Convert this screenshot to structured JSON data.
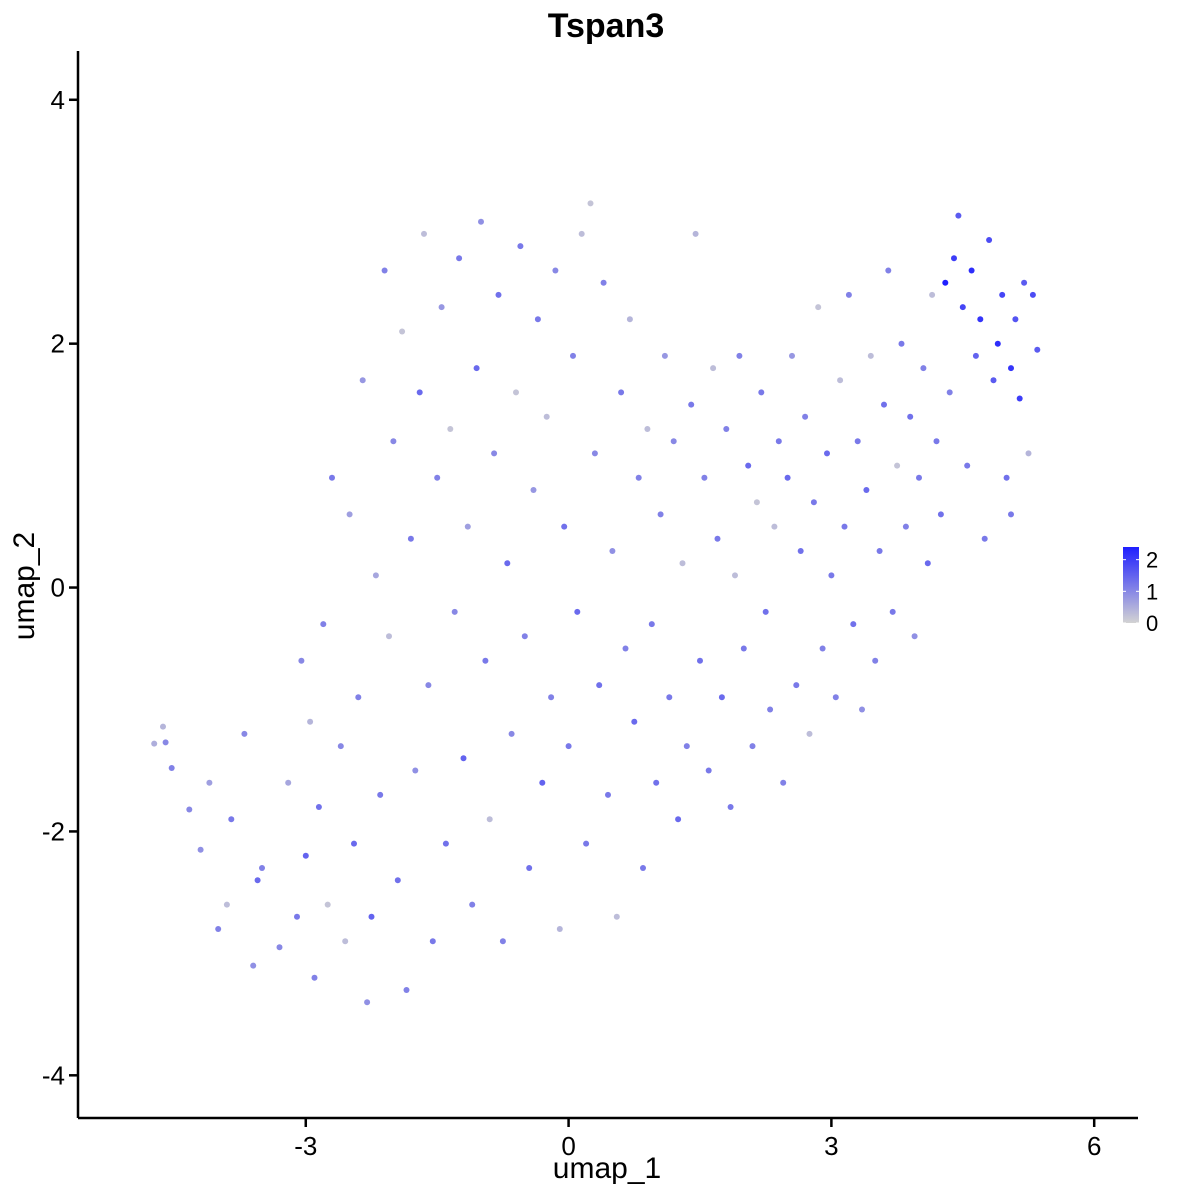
{
  "chart_data": {
    "type": "scatter",
    "title": "Tspan3",
    "xlabel": "umap_1",
    "ylabel": "umap_2",
    "xlim": [
      -5.6,
      6.5
    ],
    "ylim": [
      -4.35,
      4.4
    ],
    "x_ticks": [
      -3,
      0,
      3,
      6
    ],
    "y_ticks": [
      -4,
      -2,
      0,
      2,
      4
    ],
    "x_tick_labels": [
      "-3",
      "0",
      "3",
      "6"
    ],
    "y_tick_labels": [
      "-4",
      "-2",
      "0",
      "2",
      "4"
    ],
    "grid": false,
    "legend": {
      "placement": "right",
      "type": "colorbar",
      "range": [
        0,
        2.4
      ],
      "ticks": [
        0,
        1,
        2
      ],
      "tick_labels": [
        "0",
        "1",
        "2"
      ],
      "colors": {
        "low": "#d3d3d3",
        "high": "#1f1fff"
      }
    },
    "series": [
      {
        "color_scale": "expression",
        "points": [
          [
            -4.73,
            -1.28,
            0.5
          ],
          [
            -4.63,
            -1.14,
            0.4
          ],
          [
            -4.6,
            -1.27,
            1
          ],
          [
            -4.53,
            -1.48,
            1.1
          ],
          [
            -4.33,
            -1.82,
            1
          ],
          [
            -4.2,
            -2.15,
            0.9
          ],
          [
            -4.1,
            -1.6,
            0.7
          ],
          [
            -4,
            -2.8,
            1.1
          ],
          [
            -3.9,
            -2.6,
            0.3
          ],
          [
            -3.85,
            -1.9,
            1.2
          ],
          [
            -3.7,
            -1.2,
            1
          ],
          [
            -3.6,
            -3.1,
            0.9
          ],
          [
            -3.55,
            -2.4,
            1.4
          ],
          [
            -3.5,
            -2.3,
            1.1
          ],
          [
            -3.3,
            -2.95,
            1
          ],
          [
            -3.2,
            -1.6,
            0.6
          ],
          [
            -3.1,
            -2.7,
            1.2
          ],
          [
            -3.05,
            -0.6,
            1
          ],
          [
            -3,
            -2.2,
            1.5
          ],
          [
            -2.95,
            -1.1,
            0.4
          ],
          [
            -2.9,
            -3.2,
            1.1
          ],
          [
            -2.85,
            -1.8,
            1.3
          ],
          [
            -2.8,
            -0.3,
            1.1
          ],
          [
            -2.75,
            -2.6,
            0.2
          ],
          [
            -2.7,
            0.9,
            1.2
          ],
          [
            -2.6,
            -1.3,
            1
          ],
          [
            -2.55,
            -2.9,
            0.3
          ],
          [
            -2.5,
            0.6,
            0.7
          ],
          [
            -2.45,
            -2.1,
            1.4
          ],
          [
            -2.4,
            -0.9,
            1.1
          ],
          [
            -2.35,
            1.7,
            0.8
          ],
          [
            -2.3,
            -3.4,
            0.9
          ],
          [
            -2.25,
            -2.7,
            1.5
          ],
          [
            -2.2,
            0.1,
            0.6
          ],
          [
            -2.15,
            -1.7,
            1.2
          ],
          [
            -2.1,
            2.6,
            1.1
          ],
          [
            -2.05,
            -0.4,
            0.3
          ],
          [
            -2,
            1.2,
            1
          ],
          [
            -1.95,
            -2.4,
            1.3
          ],
          [
            -1.9,
            2.1,
            0.2
          ],
          [
            -1.85,
            -3.3,
            1.1
          ],
          [
            -1.8,
            0.4,
            1.2
          ],
          [
            -1.75,
            -1.5,
            0.9
          ],
          [
            -1.7,
            1.6,
            1.4
          ],
          [
            -1.65,
            2.9,
            0.3
          ],
          [
            -1.6,
            -0.8,
            1
          ],
          [
            -1.55,
            -2.9,
            1.2
          ],
          [
            -1.5,
            0.9,
            1.1
          ],
          [
            -1.45,
            2.3,
            0.8
          ],
          [
            -1.4,
            -2.1,
            1.3
          ],
          [
            -1.35,
            1.3,
            0.2
          ],
          [
            -1.3,
            -0.2,
            1
          ],
          [
            -1.25,
            2.7,
            1.2
          ],
          [
            -1.2,
            -1.4,
            1.5
          ],
          [
            -1.15,
            0.5,
            0.7
          ],
          [
            -1.1,
            -2.6,
            1.1
          ],
          [
            -1.05,
            1.8,
            1.4
          ],
          [
            -1,
            3.0,
            0.9
          ],
          [
            -0.95,
            -0.6,
            1.2
          ],
          [
            -0.9,
            -1.9,
            0.3
          ],
          [
            -0.85,
            1.1,
            1
          ],
          [
            -0.8,
            2.4,
            1.3
          ],
          [
            -0.75,
            -2.9,
            1.1
          ],
          [
            -0.7,
            0.2,
            1.4
          ],
          [
            -0.65,
            -1.2,
            1
          ],
          [
            -0.6,
            1.6,
            0.2
          ],
          [
            -0.55,
            2.8,
            1.2
          ],
          [
            -0.5,
            -0.4,
            1.1
          ],
          [
            -0.45,
            -2.3,
            1.3
          ],
          [
            -0.4,
            0.8,
            0.8
          ],
          [
            -0.35,
            2.2,
            1.2
          ],
          [
            -0.3,
            -1.6,
            1.5
          ],
          [
            -0.25,
            1.4,
            0.3
          ],
          [
            -0.2,
            -0.9,
            1.1
          ],
          [
            -0.15,
            2.6,
            1
          ],
          [
            -0.1,
            -2.8,
            0.4
          ],
          [
            -0.05,
            0.5,
            1.3
          ],
          [
            0,
            -1.3,
            1.2
          ],
          [
            0.05,
            1.9,
            1.1
          ],
          [
            0.1,
            -0.2,
            1.4
          ],
          [
            0.15,
            2.9,
            0.3
          ],
          [
            0.2,
            -2.1,
            1.2
          ],
          [
            0.25,
            3.15,
            0.2
          ],
          [
            0.3,
            1.1,
            1
          ],
          [
            0.35,
            -0.8,
            1.3
          ],
          [
            0.4,
            2.5,
            1.1
          ],
          [
            0.45,
            -1.7,
            1.2
          ],
          [
            0.5,
            0.3,
            0.9
          ],
          [
            0.55,
            -2.7,
            0.3
          ],
          [
            0.6,
            1.6,
            1.2
          ],
          [
            0.65,
            -0.5,
            1.1
          ],
          [
            0.7,
            2.2,
            0.4
          ],
          [
            0.75,
            -1.1,
            1.4
          ],
          [
            0.8,
            0.9,
            1.1
          ],
          [
            0.85,
            -2.3,
            1.2
          ],
          [
            0.9,
            1.3,
            0.3
          ],
          [
            0.95,
            -0.3,
            1.2
          ],
          [
            1,
            -1.6,
            1.3
          ],
          [
            1.05,
            0.6,
            1.1
          ],
          [
            1.1,
            1.9,
            0.8
          ],
          [
            1.15,
            -0.9,
            1.2
          ],
          [
            1.2,
            1.2,
            1
          ],
          [
            1.25,
            -1.9,
            1.4
          ],
          [
            1.3,
            0.2,
            0.3
          ],
          [
            1.35,
            -1.3,
            1.1
          ],
          [
            1.4,
            1.5,
            1.2
          ],
          [
            1.45,
            2.9,
            0.4
          ],
          [
            1.5,
            -0.6,
            1.3
          ],
          [
            1.55,
            0.9,
            1.1
          ],
          [
            1.6,
            -1.5,
            1.2
          ],
          [
            1.65,
            1.8,
            0.3
          ],
          [
            1.7,
            0.4,
            1.2
          ],
          [
            1.75,
            -0.9,
            1.4
          ],
          [
            1.8,
            1.3,
            1.1
          ],
          [
            1.85,
            -1.8,
            1.2
          ],
          [
            1.9,
            0.1,
            0.3
          ],
          [
            1.95,
            1.9,
            1.1
          ],
          [
            2,
            -0.5,
            1.2
          ],
          [
            2.05,
            1.0,
            1.4
          ],
          [
            2.1,
            -1.3,
            1.1
          ],
          [
            2.15,
            0.7,
            0.2
          ],
          [
            2.2,
            1.6,
            1.2
          ],
          [
            2.25,
            -0.2,
            1.3
          ],
          [
            2.3,
            -1.0,
            1.1
          ],
          [
            2.35,
            0.5,
            0.3
          ],
          [
            2.4,
            1.2,
            1.2
          ],
          [
            2.45,
            -1.6,
            1.1
          ],
          [
            2.5,
            0.9,
            1.4
          ],
          [
            2.55,
            1.9,
            0.8
          ],
          [
            2.6,
            -0.8,
            1.2
          ],
          [
            2.65,
            0.3,
            1.3
          ],
          [
            2.7,
            1.4,
            1.1
          ],
          [
            2.75,
            -1.2,
            0.3
          ],
          [
            2.8,
            0.7,
            1.2
          ],
          [
            2.85,
            2.3,
            0.2
          ],
          [
            2.9,
            -0.5,
            1.1
          ],
          [
            2.95,
            1.1,
            1.4
          ],
          [
            3,
            0.1,
            1.2
          ],
          [
            3.05,
            -0.9,
            1.1
          ],
          [
            3.1,
            1.7,
            0.3
          ],
          [
            3.15,
            0.5,
            1.2
          ],
          [
            3.2,
            2.4,
            1.1
          ],
          [
            3.25,
            -0.3,
            1.3
          ],
          [
            3.3,
            1.2,
            1.2
          ],
          [
            3.35,
            -1.0,
            0.9
          ],
          [
            3.4,
            0.8,
            1.4
          ],
          [
            3.45,
            1.9,
            0.3
          ],
          [
            3.5,
            -0.6,
            1.1
          ],
          [
            3.55,
            0.3,
            1.2
          ],
          [
            3.6,
            1.5,
            1.3
          ],
          [
            3.65,
            2.6,
            1.1
          ],
          [
            3.7,
            -0.2,
            1.2
          ],
          [
            3.75,
            1.0,
            0.2
          ],
          [
            3.8,
            2.0,
            1.2
          ],
          [
            3.85,
            0.5,
            1.1
          ],
          [
            3.9,
            1.4,
            1.3
          ],
          [
            3.95,
            -0.4,
            0.9
          ],
          [
            4,
            0.9,
            1.2
          ],
          [
            4.05,
            1.8,
            1.1
          ],
          [
            4.1,
            0.2,
            1.4
          ],
          [
            4.15,
            2.4,
            0.3
          ],
          [
            4.2,
            1.2,
            1.2
          ],
          [
            4.25,
            0.6,
            1.3
          ],
          [
            4.3,
            2.5,
            2.4
          ],
          [
            4.35,
            1.6,
            1.1
          ],
          [
            4.4,
            2.7,
            2.0
          ],
          [
            4.45,
            3.05,
            1.6
          ],
          [
            4.5,
            2.3,
            1.9
          ],
          [
            4.55,
            1.0,
            1.2
          ],
          [
            4.6,
            2.6,
            2.2
          ],
          [
            4.65,
            1.9,
            1.5
          ],
          [
            4.7,
            2.2,
            2.1
          ],
          [
            4.75,
            0.4,
            1.2
          ],
          [
            4.8,
            2.85,
            1.8
          ],
          [
            4.85,
            1.7,
            1.6
          ],
          [
            4.9,
            2.0,
            2.2
          ],
          [
            4.95,
            2.4,
            1.9
          ],
          [
            5,
            0.9,
            1.3
          ],
          [
            5.05,
            1.8,
            2.1
          ],
          [
            5.1,
            2.2,
            1.7
          ],
          [
            5.15,
            1.55,
            2.0
          ],
          [
            5.2,
            2.5,
            1.6
          ],
          [
            5.25,
            1.1,
            0.4
          ],
          [
            5.3,
            2.4,
            1.8
          ],
          [
            5.35,
            1.95,
            1.6
          ],
          [
            5.05,
            0.6,
            1.2
          ]
        ]
      }
    ]
  }
}
